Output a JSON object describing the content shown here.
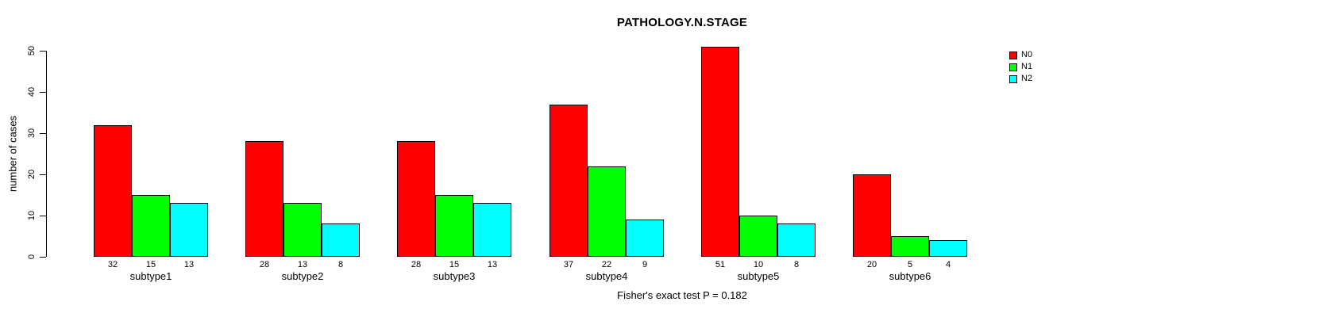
{
  "chart_data": {
    "type": "bar",
    "title": "PATHOLOGY.N.STAGE",
    "ylabel": "number of cases",
    "subtitle": "Fisher's exact test P = 0.182",
    "categories": [
      "subtype1",
      "subtype2",
      "subtype3",
      "subtype4",
      "subtype5",
      "subtype6"
    ],
    "series": [
      {
        "name": "N0",
        "color": "#FF0000",
        "values": [
          32,
          28,
          28,
          37,
          51,
          20
        ]
      },
      {
        "name": "N1",
        "color": "#00FF00",
        "values": [
          15,
          13,
          15,
          22,
          10,
          5
        ]
      },
      {
        "name": "N2",
        "color": "#00FFFF",
        "values": [
          13,
          8,
          13,
          9,
          8,
          4
        ]
      }
    ],
    "yticks": [
      0,
      10,
      20,
      30,
      40,
      50
    ],
    "ylim": [
      0,
      50
    ],
    "bar_value_labels": true,
    "legend_position": "top-right",
    "grid": false,
    "background_color": "#FFFFFF",
    "axis_color": "#000000"
  }
}
